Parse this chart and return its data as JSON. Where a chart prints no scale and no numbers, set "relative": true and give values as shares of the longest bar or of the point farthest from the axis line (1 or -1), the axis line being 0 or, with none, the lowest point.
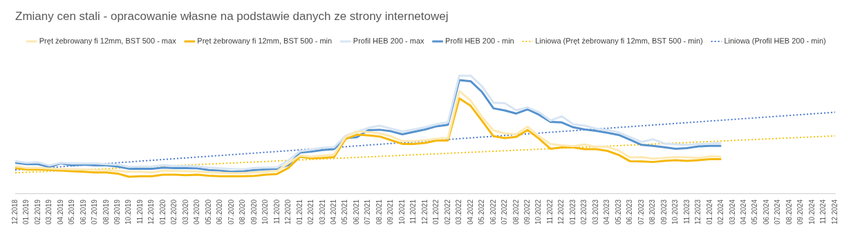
{
  "chart_data": {
    "type": "line",
    "title": "Zmiany cen stali - opracowanie własne na podstawie danych ze strony internetowej",
    "relative": true,
    "grid": false,
    "legend": "top",
    "marker": "none",
    "categories": [
      "12.2018",
      "01.2019",
      "02.2019",
      "03.2019",
      "04.2019",
      "05.2019",
      "06.2019",
      "07.2019",
      "08.2019",
      "09.2019",
      "10.2019",
      "11.2019",
      "12.2019",
      "01.2020",
      "02.2020",
      "03.2020",
      "04.2020",
      "05.2020",
      "06.2020",
      "07.2020",
      "08.2020",
      "09.2020",
      "10.2020",
      "11.2020",
      "12.2020",
      "01.2021",
      "02.2021",
      "03.2021",
      "04.2021",
      "05.2021",
      "06.2021",
      "07.2021",
      "08.2021",
      "09.2021",
      "10.2021",
      "11.2021",
      "12.2021",
      "01.2022",
      "02.2022",
      "03.2022",
      "04.2022",
      "05.2022",
      "06.2022",
      "07.2022",
      "08.2022",
      "09.2022",
      "10.2022",
      "11.2022",
      "12.2022",
      "01.2023",
      "02.2023",
      "03.2023",
      "04.2023",
      "05.2023",
      "06.2023",
      "07.2023",
      "08.2023",
      "09.2023",
      "10.2023",
      "11.2023",
      "12.2023",
      "01.2024",
      "02.2024",
      "03.2024",
      "04.2024",
      "05.2024",
      "06.2024",
      "07.2024",
      "08.2024",
      "09.2024",
      "10.2024",
      "11.2024",
      "12.2024"
    ],
    "series": [
      {
        "name": "Pręt żebrowany fi 12mm, BST 500 - max",
        "color": "#fde9b4",
        "line_style": "solid",
        "values": [
          0.236,
          0.22,
          0.22,
          0.215,
          0.211,
          0.208,
          0.207,
          0.203,
          0.203,
          0.195,
          0.187,
          0.187,
          0.182,
          0.198,
          0.195,
          0.192,
          0.19,
          0.182,
          0.179,
          0.176,
          0.176,
          0.182,
          0.187,
          0.195,
          0.26,
          0.325,
          0.314,
          0.325,
          0.333,
          0.48,
          0.528,
          0.524,
          0.512,
          0.488,
          0.447,
          0.447,
          0.455,
          0.467,
          0.472,
          0.87,
          0.789,
          0.65,
          0.537,
          0.512,
          0.504,
          0.569,
          0.488,
          0.423,
          0.411,
          0.403,
          0.418,
          0.398,
          0.398,
          0.366,
          0.309,
          0.312,
          0.298,
          0.304,
          0.312,
          0.309,
          0.304,
          0.317,
          0.314,
          null,
          null,
          null,
          null,
          null,
          null,
          null,
          null,
          null,
          null
        ]
      },
      {
        "name": "Pręt żebrowany fi 12mm, BST 500 - min",
        "color": "#f5b80a",
        "line_style": "solid",
        "values": [
          0.218,
          0.207,
          0.208,
          0.203,
          0.198,
          0.192,
          0.187,
          0.182,
          0.182,
          0.172,
          0.145,
          0.15,
          0.15,
          0.163,
          0.163,
          0.159,
          0.163,
          0.154,
          0.15,
          0.15,
          0.15,
          0.153,
          0.163,
          0.169,
          0.22,
          0.314,
          0.301,
          0.304,
          0.312,
          0.463,
          0.501,
          0.496,
          0.486,
          0.455,
          0.423,
          0.423,
          0.431,
          0.452,
          0.452,
          0.808,
          0.745,
          0.618,
          0.488,
          0.472,
          0.483,
          0.54,
          0.467,
          0.382,
          0.393,
          0.393,
          0.379,
          0.379,
          0.364,
          0.33,
          0.276,
          0.275,
          0.27,
          0.28,
          0.285,
          0.28,
          0.286,
          0.294,
          0.294,
          null,
          null,
          null,
          null,
          null,
          null,
          null,
          null,
          null,
          null
        ]
      },
      {
        "name": "Profil HEB 200 - max",
        "color": "#d7e5f3",
        "line_style": "solid",
        "values": [
          0.276,
          0.263,
          0.268,
          0.241,
          0.263,
          0.257,
          0.257,
          0.257,
          0.252,
          0.247,
          0.228,
          0.231,
          0.231,
          0.244,
          0.236,
          0.236,
          0.233,
          0.223,
          0.216,
          0.211,
          0.208,
          0.22,
          0.223,
          0.224,
          0.285,
          0.361,
          0.374,
          0.39,
          0.395,
          0.491,
          0.525,
          0.558,
          0.577,
          0.553,
          0.528,
          0.545,
          0.564,
          0.589,
          0.605,
          1,
          1,
          0.91,
          0.772,
          0.767,
          0.707,
          0.732,
          0.691,
          0.621,
          0.657,
          0.589,
          0.577,
          0.553,
          0.54,
          0.52,
          0.48,
          0.439,
          0.463,
          0.426,
          0.42,
          0.415,
          0.423,
          0.426,
          0.431,
          null,
          null,
          null,
          null,
          null,
          null,
          null,
          null,
          null,
          null
        ]
      },
      {
        "name": "Profil HEB 200 - min",
        "color": "#5692cd",
        "line_style": "solid",
        "values": [
          0.263,
          0.252,
          0.252,
          0.228,
          0.259,
          0.242,
          0.247,
          0.242,
          0.241,
          0.231,
          0.213,
          0.213,
          0.213,
          0.223,
          0.218,
          0.218,
          0.216,
          0.202,
          0.197,
          0.187,
          0.192,
          0.202,
          0.208,
          0.213,
          0.244,
          0.35,
          0.358,
          0.371,
          0.379,
          0.472,
          0.48,
          0.54,
          0.543,
          0.53,
          0.504,
          0.525,
          0.545,
          0.572,
          0.585,
          0.963,
          0.953,
          0.862,
          0.724,
          0.706,
          0.68,
          0.715,
          0.67,
          0.61,
          0.605,
          0.564,
          0.545,
          0.533,
          0.517,
          0.499,
          0.459,
          0.415,
          0.407,
          0.395,
          0.382,
          0.387,
          0.402,
          0.407,
          0.407,
          null,
          null,
          null,
          null,
          null,
          null,
          null,
          null,
          null,
          null
        ]
      },
      {
        "name": "Liniowa (Pręt żebrowany fi 12mm, BST 500 - min)",
        "color": "#f5c518",
        "line_style": "dotted",
        "x": [
          "12.2018",
          "12.2024"
        ],
        "values": [
          0.179,
          0.491
        ]
      },
      {
        "name": "Liniowa (Profil HEB 200 - min)",
        "color": "#4a78d0",
        "line_style": "dotted",
        "x": [
          "12.2018",
          "12.2024"
        ],
        "values": [
          0.203,
          0.691
        ]
      }
    ]
  }
}
